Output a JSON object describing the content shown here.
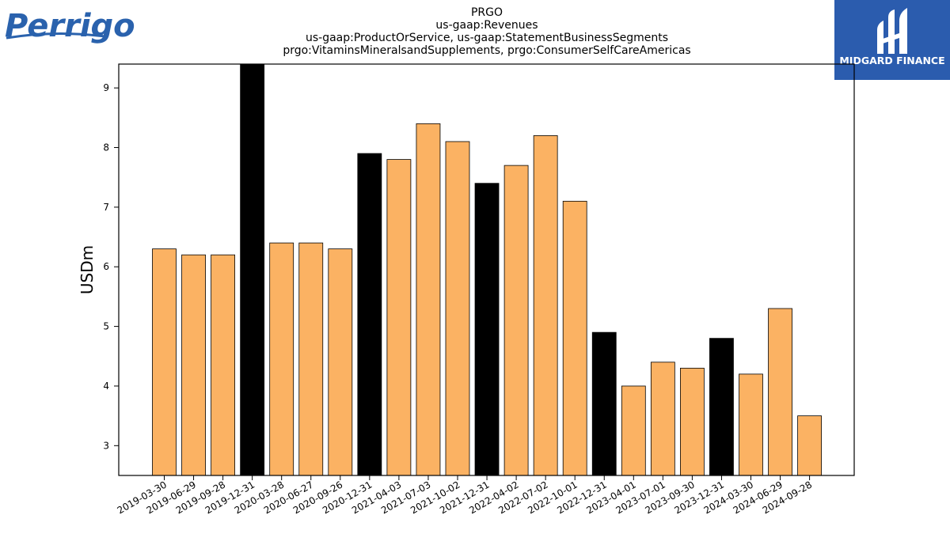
{
  "logos": {
    "left_text": "Perrigo",
    "left_color": "#2a62ad",
    "right_text": "MIDGARD FINANCE",
    "right_bg": "#2b5cae"
  },
  "colors": {
    "bar_regular": "#fbb263",
    "bar_year_end": "#000000"
  },
  "chart_data": {
    "type": "bar",
    "title_lines": [
      "PRGO",
      "us-gaap:Revenues",
      "us-gaap:ProductOrService, us-gaap:StatementBusinessSegments",
      "prgo:VitaminsMineralsandSupplements, prgo:ConsumerSelfCareAmericas"
    ],
    "xlabel": "",
    "ylabel": "USDm",
    "ylim": [
      2.5,
      9.4
    ],
    "yticks": [
      3,
      4,
      5,
      6,
      7,
      8,
      9
    ],
    "categories": [
      "2019-03-30",
      "2019-06-29",
      "2019-09-28",
      "2019-12-31",
      "2020-03-28",
      "2020-06-27",
      "2020-09-26",
      "2020-12-31",
      "2021-04-03",
      "2021-07-03",
      "2021-10-02",
      "2021-12-31",
      "2022-04-02",
      "2022-07-02",
      "2022-10-01",
      "2022-12-31",
      "2023-04-01",
      "2023-07-01",
      "2023-09-30",
      "2023-12-31",
      "2024-03-30",
      "2024-06-29",
      "2024-09-28"
    ],
    "values": [
      6.3,
      6.2,
      6.2,
      9.4,
      6.4,
      6.4,
      6.3,
      7.9,
      7.8,
      8.4,
      8.1,
      7.4,
      7.7,
      8.2,
      7.1,
      4.9,
      4.0,
      4.4,
      4.3,
      4.8,
      4.2,
      5.3,
      3.5
    ],
    "year_end": [
      false,
      false,
      false,
      true,
      false,
      false,
      false,
      true,
      false,
      false,
      false,
      true,
      false,
      false,
      false,
      true,
      false,
      false,
      false,
      true,
      false,
      false,
      false
    ],
    "grid": false,
    "legend": "none"
  }
}
